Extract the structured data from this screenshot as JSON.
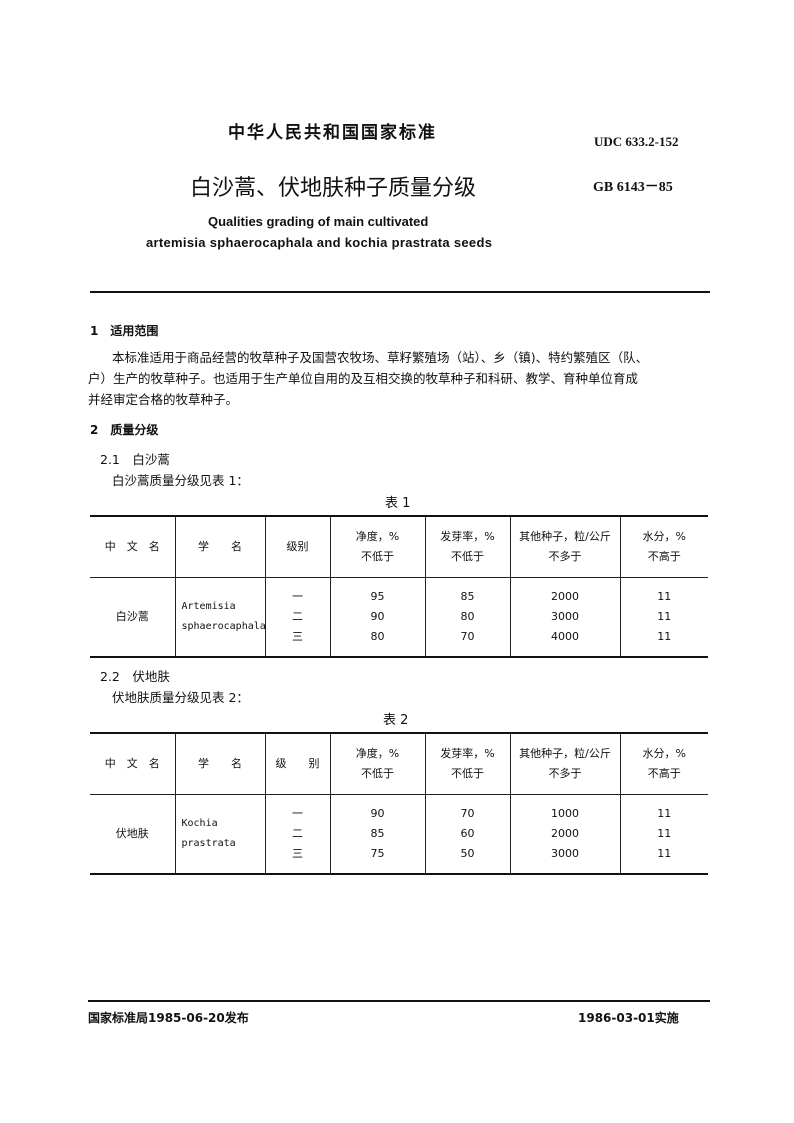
{
  "header": {
    "org": "中华人民共和国国家标准",
    "udc": "UDC 633.2-152",
    "title": "白沙蒿、伏地肤种子质量分级",
    "code": "GB 6143－85",
    "en_title_1": "Qualities grading of main cultivated",
    "en_title_2": "artemisia sphaerocaphala and kochia prastrata seeds"
  },
  "sec1": {
    "heading": "1　适用范围",
    "para_1": "本标准适用于商品经营的牧草种子及国营农牧场、草籽繁殖场（站）、乡（镇)、特约繁殖区（队、",
    "para_2": "户）生产的牧草种子。也适用于生产单位自用的及互相交换的牧草种子和科研、教学、育种单位育成",
    "para_3": "并经审定合格的牧草种子。"
  },
  "sec2": {
    "heading": "2　质量分级",
    "sub1": "2.1　白沙蒿",
    "sub1_text": "白沙蒿质量分级见表 1：",
    "sub2": "2.2　伏地肤",
    "sub2_text": "伏地肤质量分级见表 2："
  },
  "table1": {
    "caption": "表 1",
    "headers": [
      "中　文　名",
      "学　　名",
      "级别",
      "净度，%",
      "发芽率，%",
      "其他种子，粒/公斤",
      "水分，%"
    ],
    "subheaders": [
      "不低于",
      "不低于",
      "不多于",
      "不高于"
    ],
    "cn_name": "白沙蒿",
    "sci_1": "Artemisia",
    "sci_2": "sphaerocaphala",
    "grades": [
      "一",
      "二",
      "三"
    ],
    "purity": [
      "95",
      "90",
      "80"
    ],
    "germination": [
      "85",
      "80",
      "70"
    ],
    "other_seeds": [
      "2000",
      "3000",
      "4000"
    ],
    "moisture": [
      "11",
      "11",
      "11"
    ]
  },
  "table2": {
    "caption": "表 2",
    "headers": [
      "中　文　名",
      "学　　名",
      "级　　别",
      "净度，%",
      "发芽率，%",
      "其他种子，粒/公斤",
      "水分，%"
    ],
    "subheaders": [
      "不低于",
      "不低于",
      "不多于",
      "不高于"
    ],
    "cn_name": "伏地肤",
    "sci_1": "Kochia",
    "sci_2": "prastrata",
    "grades": [
      "一",
      "二",
      "三"
    ],
    "purity": [
      "90",
      "85",
      "75"
    ],
    "germination": [
      "70",
      "60",
      "50"
    ],
    "other_seeds": [
      "1000",
      "2000",
      "3000"
    ],
    "moisture": [
      "11",
      "11",
      "11"
    ]
  },
  "footer": {
    "issued": "国家标准局1985-06-20发布",
    "effective": "1986-03-01实施"
  }
}
